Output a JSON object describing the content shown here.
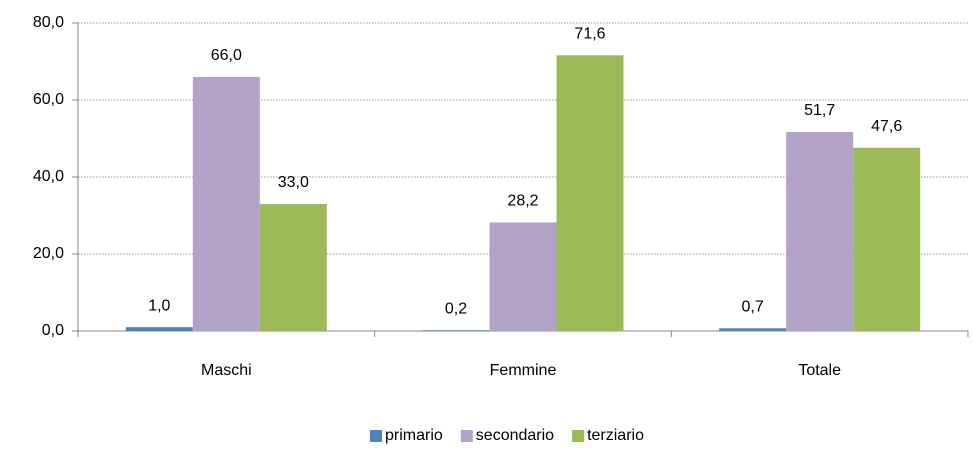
{
  "chart_data": {
    "type": "bar",
    "categories": [
      "Maschi",
      "Femmine",
      "Totale"
    ],
    "series": [
      {
        "name": "primario",
        "color": "#4f81bd",
        "values": [
          1.0,
          0.2,
          0.7
        ],
        "value_labels": [
          "1,0",
          "0,2",
          "0,7"
        ]
      },
      {
        "name": "secondario",
        "color": "#b3a2c7",
        "values": [
          66.0,
          28.2,
          51.7
        ],
        "value_labels": [
          "66,0",
          "28,2",
          "51,7"
        ]
      },
      {
        "name": "terziario",
        "color": "#9bbb59",
        "values": [
          33.0,
          71.6,
          47.6
        ],
        "value_labels": [
          "33,0",
          "71,6",
          "47,6"
        ]
      }
    ],
    "ylim": [
      0,
      80
    ],
    "yticks": [
      {
        "value": 0,
        "label": "0,0"
      },
      {
        "value": 20,
        "label": "20,0"
      },
      {
        "value": 40,
        "label": "40,0"
      },
      {
        "value": 60,
        "label": "60,0"
      },
      {
        "value": 80,
        "label": "80,0"
      }
    ],
    "grid": true,
    "legend": "bottom"
  }
}
